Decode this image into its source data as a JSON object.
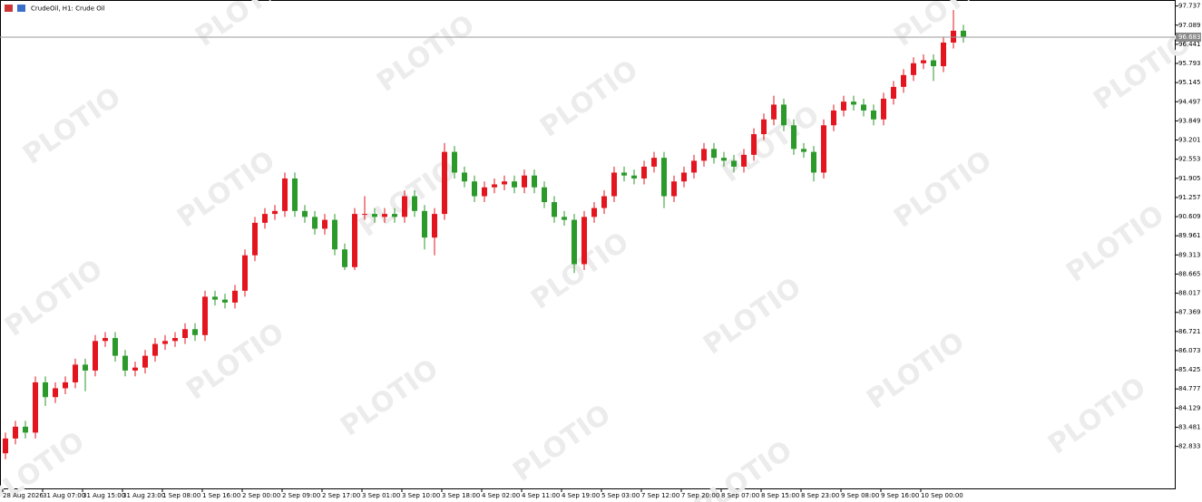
{
  "chart_data": {
    "type": "candlestick",
    "title": "CrudeOil, H1:  Crude Oil",
    "watermark": "PLOTIO",
    "categories": [
      "28 Aug 2026",
      null,
      null,
      null,
      "31 Aug 07:00",
      null,
      null,
      null,
      "31 Aug 15:00",
      null,
      null,
      null,
      "31 Aug 23:00",
      null,
      null,
      null,
      "1 Sep 08:00",
      null,
      null,
      null,
      "1 Sep 16:00",
      null,
      null,
      null,
      "2 Sep 00:00",
      null,
      null,
      null,
      "2 Sep 09:00",
      null,
      null,
      null,
      "2 Sep 17:00",
      null,
      null,
      null,
      "3 Sep 01:00",
      null,
      null,
      null,
      "3 Sep 10:00",
      null,
      null,
      null,
      "3 Sep 18:00",
      null,
      null,
      null,
      "4 Sep 02:00",
      null,
      null,
      null,
      "4 Sep 11:00",
      null,
      null,
      null,
      "4 Sep 19:00",
      null,
      null,
      null,
      "5 Sep 03:00",
      null,
      null,
      null,
      "7 Sep 12:00",
      null,
      null,
      null,
      "7 Sep 20:00",
      null,
      null,
      null,
      "8 Sep 07:00",
      null,
      null,
      null,
      "8 Sep 15:00",
      null,
      null,
      null,
      "8 Sep 23:00",
      null,
      null,
      null,
      "9 Sep 08:00",
      null,
      null,
      null,
      "9 Sep 16:00",
      null,
      null,
      null,
      "10 Sep 00:00",
      null,
      null,
      null,
      null
    ],
    "open": [
      82.6,
      83.1,
      83.5,
      83.3,
      85.0,
      84.5,
      84.8,
      85.0,
      85.6,
      85.4,
      86.4,
      86.5,
      85.9,
      85.4,
      85.5,
      85.9,
      86.3,
      86.4,
      86.5,
      86.8,
      86.6,
      87.9,
      87.8,
      87.7,
      88.1,
      89.3,
      90.4,
      90.7,
      90.8,
      91.9,
      90.8,
      90.6,
      90.2,
      90.5,
      89.5,
      88.9,
      90.7,
      90.7,
      90.6,
      90.7,
      90.6,
      91.3,
      90.8,
      89.9,
      90.7,
      92.8,
      92.1,
      91.8,
      91.3,
      91.6,
      91.7,
      91.8,
      91.6,
      92.0,
      91.6,
      91.1,
      90.6,
      90.5,
      89.0,
      90.6,
      90.9,
      91.3,
      92.1,
      92.0,
      91.9,
      92.3,
      92.6,
      91.3,
      91.8,
      92.1,
      92.5,
      92.9,
      92.6,
      92.5,
      92.3,
      92.7,
      93.4,
      93.9,
      94.4,
      93.7,
      92.9,
      92.8,
      92.1,
      93.7,
      94.2,
      94.5,
      94.4,
      94.2,
      93.9,
      94.6,
      95.0,
      95.4,
      95.8,
      95.9,
      95.7,
      96.5,
      96.9
    ],
    "high": [
      83.3,
      83.7,
      83.7,
      85.2,
      85.2,
      85.0,
      85.2,
      85.8,
      85.8,
      86.6,
      86.7,
      86.7,
      86.1,
      85.7,
      86.1,
      86.5,
      86.6,
      86.7,
      87.0,
      87.0,
      88.1,
      88.1,
      88.0,
      88.3,
      89.5,
      90.6,
      90.9,
      91.0,
      92.1,
      92.1,
      91.0,
      90.8,
      90.7,
      90.7,
      89.7,
      90.9,
      91.3,
      90.9,
      90.9,
      90.9,
      91.5,
      91.5,
      91.0,
      90.9,
      93.1,
      93.0,
      92.3,
      92.0,
      91.8,
      91.9,
      92.0,
      92.0,
      92.2,
      92.2,
      91.8,
      91.3,
      90.8,
      90.7,
      90.8,
      91.1,
      91.5,
      92.3,
      92.3,
      92.2,
      92.5,
      92.8,
      92.8,
      92.0,
      92.3,
      92.7,
      93.1,
      93.1,
      92.8,
      92.7,
      92.9,
      93.6,
      94.1,
      94.7,
      94.6,
      93.9,
      93.1,
      93.0,
      93.9,
      94.4,
      94.7,
      94.7,
      94.6,
      94.4,
      94.8,
      95.2,
      95.6,
      96.0,
      96.1,
      96.1,
      96.7,
      97.6,
      97.1
    ],
    "low": [
      82.4,
      82.9,
      83.1,
      83.1,
      84.2,
      84.3,
      84.6,
      84.8,
      84.7,
      85.2,
      86.2,
      85.7,
      85.2,
      85.2,
      85.3,
      85.7,
      86.1,
      86.2,
      86.3,
      86.4,
      86.4,
      87.6,
      87.5,
      87.5,
      87.9,
      89.1,
      90.2,
      90.5,
      90.6,
      90.6,
      90.4,
      90.0,
      90.0,
      89.3,
      88.8,
      88.8,
      90.5,
      90.4,
      90.4,
      90.4,
      90.4,
      90.6,
      89.5,
      89.3,
      90.5,
      91.9,
      91.6,
      91.1,
      91.1,
      91.4,
      91.5,
      91.4,
      91.4,
      91.4,
      90.9,
      90.4,
      90.3,
      88.7,
      88.8,
      90.4,
      90.7,
      91.1,
      91.8,
      91.7,
      91.7,
      92.1,
      90.9,
      91.1,
      91.6,
      91.9,
      92.3,
      92.4,
      92.3,
      92.1,
      92.1,
      92.5,
      93.2,
      93.7,
      93.5,
      92.7,
      92.6,
      91.8,
      91.9,
      93.5,
      94.0,
      94.2,
      94.0,
      93.7,
      93.7,
      94.4,
      94.8,
      95.2,
      95.6,
      95.2,
      95.5,
      96.3,
      96.5
    ],
    "close": [
      83.1,
      83.5,
      83.3,
      85.0,
      84.5,
      84.8,
      85.0,
      85.6,
      85.4,
      86.4,
      86.5,
      85.9,
      85.4,
      85.5,
      85.9,
      86.3,
      86.4,
      86.5,
      86.8,
      86.6,
      87.9,
      87.8,
      87.7,
      88.1,
      89.3,
      90.4,
      90.7,
      90.8,
      91.9,
      90.8,
      90.6,
      90.2,
      90.5,
      89.5,
      88.9,
      90.7,
      90.7,
      90.6,
      90.7,
      90.6,
      91.3,
      90.8,
      89.9,
      90.7,
      92.8,
      92.1,
      91.8,
      91.3,
      91.6,
      91.7,
      91.8,
      91.6,
      92.0,
      91.6,
      91.1,
      90.6,
      90.5,
      89.0,
      90.6,
      90.9,
      91.3,
      92.1,
      92.0,
      91.9,
      92.3,
      92.6,
      91.3,
      91.8,
      92.1,
      92.5,
      92.9,
      92.6,
      92.5,
      92.3,
      92.7,
      93.4,
      93.9,
      94.4,
      93.7,
      92.9,
      92.8,
      92.1,
      93.7,
      94.2,
      94.5,
      94.4,
      94.2,
      93.9,
      94.6,
      95.0,
      95.4,
      95.8,
      95.9,
      95.7,
      96.5,
      96.9,
      96.7
    ],
    "up_color": "#e3161f",
    "down_color": "#2b9a2b",
    "current_price": 96.683,
    "ylim": [
      81.38,
      97.94
    ],
    "yticks": [
      97.737,
      97.089,
      96.441,
      95.793,
      95.145,
      94.497,
      93.849,
      93.201,
      92.553,
      91.905,
      91.257,
      90.609,
      89.961,
      89.313,
      88.665,
      88.017,
      87.369,
      86.721,
      86.073,
      85.425,
      84.777,
      84.129,
      83.481,
      82.833
    ]
  }
}
